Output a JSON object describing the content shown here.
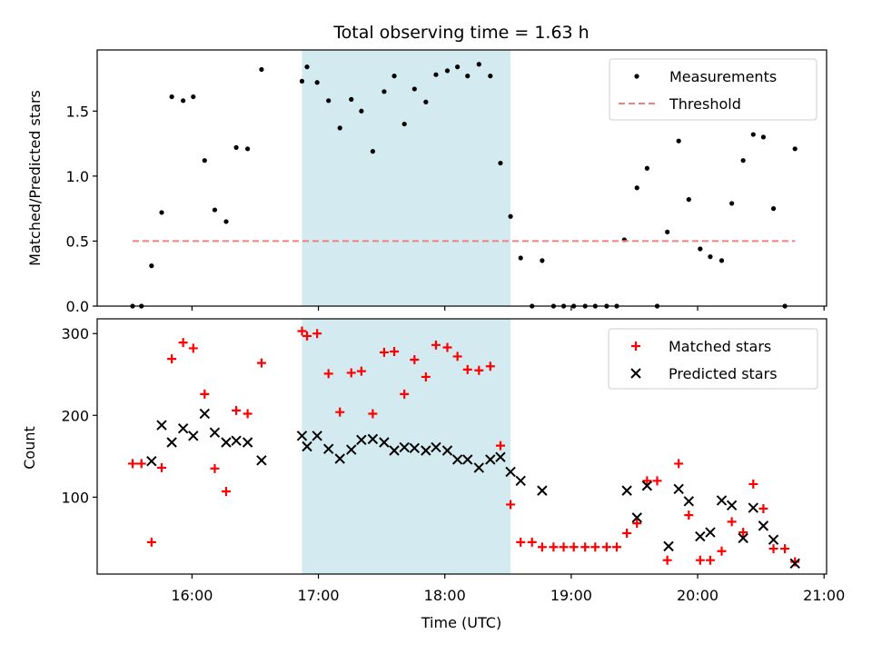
{
  "chart_data": [
    {
      "type": "scatter",
      "title": "Total observing time = 1.63 h",
      "xlabel": "",
      "ylabel": "Matched/Predicted stars",
      "xlim": [
        15.25,
        21.02
      ],
      "ylim": [
        0,
        1.97
      ],
      "yticks": [
        0,
        0.5,
        1,
        1.5
      ],
      "ytick_labels": [
        "0.0",
        "0.5",
        "1.0",
        "1.5"
      ],
      "xticks": [
        16,
        17,
        18,
        19,
        20,
        21
      ],
      "shaded_interval": [
        16.87,
        18.52
      ],
      "shade_color": "#d3eaf0",
      "legend_position": "upper right",
      "series": [
        {
          "name": "Measurements",
          "kind": "points",
          "color": "#000000",
          "x": [
            15.53,
            15.6,
            15.68,
            15.76,
            15.84,
            15.93,
            16.01,
            16.1,
            16.18,
            16.27,
            16.35,
            16.44,
            16.55,
            16.87,
            16.91,
            16.99,
            17.08,
            17.17,
            17.26,
            17.34,
            17.43,
            17.52,
            17.6,
            17.68,
            17.76,
            17.85,
            17.93,
            18.02,
            18.1,
            18.18,
            18.27,
            18.36,
            18.44,
            18.52,
            18.6,
            18.69,
            18.77,
            18.86,
            18.94,
            19.02,
            19.11,
            19.19,
            19.28,
            19.36,
            19.42,
            19.52,
            19.6,
            19.68,
            19.76,
            19.85,
            19.93,
            20.02,
            20.1,
            20.19,
            20.27,
            20.36,
            20.44,
            20.52,
            20.6,
            20.69,
            20.77
          ],
          "y": [
            0.0,
            0.0,
            0.31,
            0.72,
            1.61,
            1.58,
            1.61,
            1.12,
            0.74,
            0.65,
            1.22,
            1.21,
            1.82,
            1.73,
            1.84,
            1.72,
            1.58,
            1.37,
            1.59,
            1.5,
            1.19,
            1.65,
            1.77,
            1.4,
            1.67,
            1.57,
            1.78,
            1.81,
            1.84,
            1.77,
            1.86,
            1.77,
            1.1,
            0.69,
            0.37,
            0.0,
            0.35,
            0.0,
            0.0,
            0.0,
            0.0,
            0.0,
            0.0,
            0.0,
            0.51,
            0.91,
            1.06,
            0.0,
            0.57,
            1.27,
            0.82,
            0.44,
            0.38,
            0.35,
            0.79,
            1.12,
            1.32,
            1.3,
            0.75,
            0.0,
            1.21
          ]
        },
        {
          "name": "Threshold",
          "kind": "dashed-line",
          "color": "#f08080",
          "x": [
            15.53,
            20.77
          ],
          "y": [
            0.5,
            0.5
          ]
        }
      ]
    },
    {
      "type": "scatter",
      "title": "",
      "xlabel": "Time (UTC)",
      "ylabel": "Count",
      "xlim": [
        15.25,
        21.02
      ],
      "ylim": [
        6,
        318
      ],
      "yticks": [
        100,
        200,
        300
      ],
      "ytick_labels": [
        "100",
        "200",
        "300"
      ],
      "xticks": [
        16,
        17,
        18,
        19,
        20,
        21
      ],
      "xtick_labels": [
        "16:00",
        "17:00",
        "18:00",
        "19:00",
        "20:00",
        "21:00"
      ],
      "shaded_interval": [
        16.87,
        18.52
      ],
      "shade_color": "#d3eaf0",
      "legend_position": "upper right",
      "series": [
        {
          "name": "Matched stars",
          "kind": "plus",
          "color": "#ff0000",
          "x": [
            15.53,
            15.6,
            15.68,
            15.76,
            15.84,
            15.93,
            16.01,
            16.1,
            16.18,
            16.27,
            16.35,
            16.44,
            16.55,
            16.87,
            16.91,
            16.99,
            17.08,
            17.17,
            17.26,
            17.34,
            17.43,
            17.52,
            17.6,
            17.68,
            17.76,
            17.85,
            17.93,
            18.02,
            18.1,
            18.18,
            18.27,
            18.36,
            18.44,
            18.52,
            18.6,
            18.69,
            18.77,
            18.86,
            18.94,
            19.02,
            19.11,
            19.19,
            19.28,
            19.36,
            19.44,
            19.52,
            19.6,
            19.68,
            19.76,
            19.85,
            19.93,
            20.02,
            20.1,
            20.19,
            20.27,
            20.36,
            20.44,
            20.52,
            20.6,
            20.69,
            20.77
          ],
          "y": [
            141,
            141,
            45,
            136,
            269,
            289,
            282,
            226,
            135,
            107,
            206,
            202,
            264,
            303,
            297,
            300,
            251,
            204,
            252,
            254,
            202,
            277,
            278,
            226,
            268,
            247,
            286,
            283,
            272,
            256,
            255,
            260,
            163,
            91,
            45,
            45,
            39,
            39,
            39,
            39,
            39,
            39,
            39,
            39,
            56,
            68,
            120,
            120,
            23,
            141,
            78,
            23,
            23,
            34,
            70,
            57,
            116,
            86,
            37,
            37,
            21
          ]
        },
        {
          "name": "Predicted stars",
          "kind": "cross",
          "color": "#000000",
          "x": [
            15.68,
            15.76,
            15.84,
            15.93,
            16.01,
            16.1,
            16.18,
            16.27,
            16.35,
            16.44,
            16.55,
            16.87,
            16.91,
            16.99,
            17.08,
            17.17,
            17.26,
            17.34,
            17.43,
            17.52,
            17.6,
            17.68,
            17.76,
            17.85,
            17.93,
            18.02,
            18.1,
            18.18,
            18.27,
            18.36,
            18.44,
            18.52,
            18.6,
            18.77,
            19.44,
            19.52,
            19.6,
            19.77,
            19.85,
            19.93,
            20.02,
            20.1,
            20.19,
            20.27,
            20.36,
            20.44,
            20.52,
            20.6,
            20.77
          ],
          "y": [
            144,
            188,
            167,
            184,
            175,
            202,
            179,
            167,
            169,
            167,
            145,
            175,
            162,
            175,
            159,
            147,
            158,
            170,
            171,
            167,
            157,
            161,
            160,
            157,
            161,
            157,
            146,
            146,
            136,
            146,
            149,
            131,
            120,
            108,
            108,
            75,
            114,
            40,
            110,
            95,
            52,
            57,
            96,
            90,
            50,
            87,
            65,
            48,
            19
          ]
        }
      ]
    }
  ]
}
